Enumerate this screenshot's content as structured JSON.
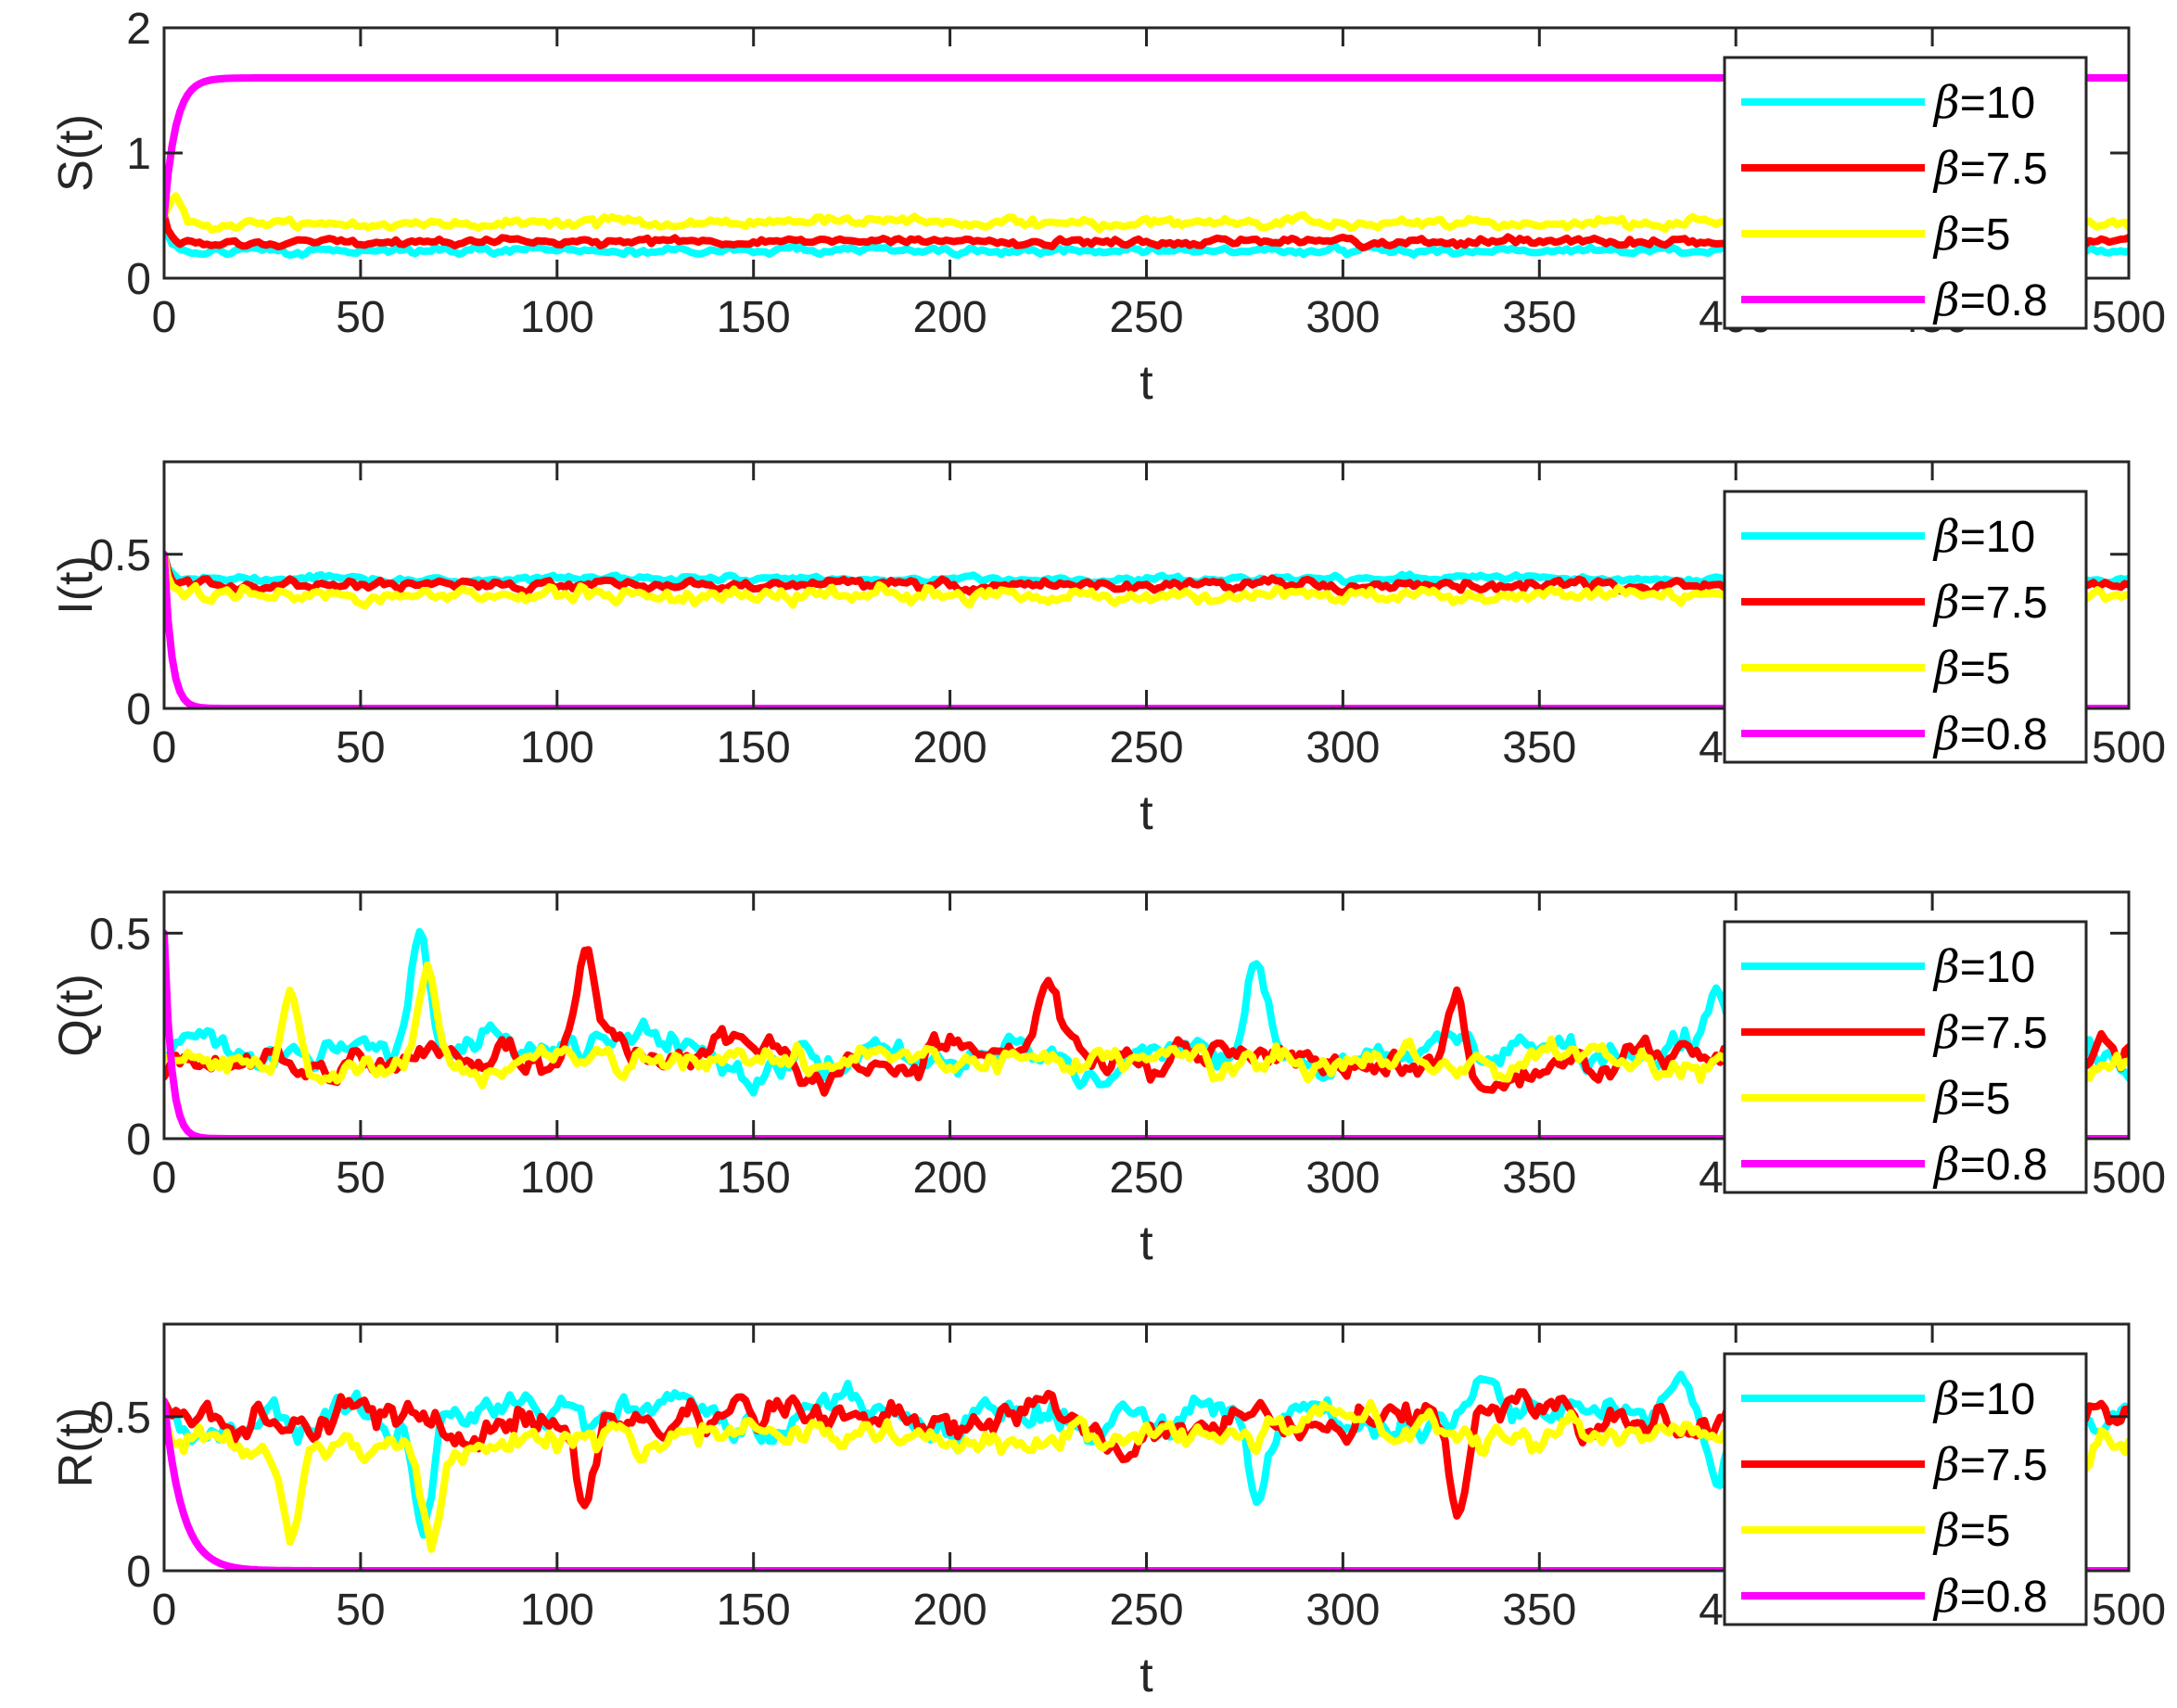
{
  "chart_data": [
    {
      "type": "line",
      "ylabel": "S(t)",
      "xlabel": "t",
      "xlim": [
        0,
        500
      ],
      "ylim": [
        0,
        2
      ],
      "xticks": [
        "0",
        "50",
        "100",
        "150",
        "200",
        "250",
        "300",
        "350",
        "400",
        "450",
        "500"
      ],
      "yticks": [
        "0",
        "1",
        "2"
      ],
      "legend": {
        "position": "top-right"
      },
      "series": [
        {
          "name": "β=10",
          "color": "#00ffff",
          "initial": 0.5,
          "steady": 0.22,
          "noise": 0.015,
          "rate": 0.8,
          "fluctuation": "small",
          "seed": 11
        },
        {
          "name": "β=7.5",
          "color": "#ff0000",
          "initial": 0.5,
          "steady": 0.29,
          "noise": 0.015,
          "rate": 0.8,
          "fluctuation": "small",
          "seed": 12
        },
        {
          "name": "β=5",
          "color": "#ffff00",
          "initial": 0.5,
          "steady": 0.44,
          "noise": 0.02,
          "rate": 0.8,
          "fluctuation": "small",
          "seed": 13,
          "overshoot": 0.75
        },
        {
          "name": "β=0.8",
          "color": "#ff00ff",
          "initial": 0.5,
          "steady": 1.6,
          "noise": 0.0,
          "rate": 0.35,
          "fluctuation": "none",
          "seed": 14
        }
      ]
    },
    {
      "type": "line",
      "ylabel": "I(t)",
      "xlabel": "t",
      "xlim": [
        0,
        500
      ],
      "ylim": [
        0,
        0.8
      ],
      "xticks": [
        "0",
        "50",
        "100",
        "150",
        "200",
        "250",
        "300",
        "350",
        "400",
        "450",
        "500"
      ],
      "yticks": [
        "0",
        "0.5"
      ],
      "legend": {
        "position": "top-right"
      },
      "series": [
        {
          "name": "β=10",
          "color": "#00ffff",
          "initial": 0.5,
          "steady": 0.42,
          "noise": 0.005,
          "rate": 0.8,
          "fluctuation": "small",
          "seed": 21
        },
        {
          "name": "β=7.5",
          "color": "#ff0000",
          "initial": 0.5,
          "steady": 0.4,
          "noise": 0.008,
          "rate": 0.8,
          "fluctuation": "small",
          "seed": 22
        },
        {
          "name": "β=5",
          "color": "#ffff00",
          "initial": 0.5,
          "steady": 0.37,
          "noise": 0.012,
          "rate": 0.8,
          "fluctuation": "small",
          "seed": 23
        },
        {
          "name": "β=0.8",
          "color": "#ff00ff",
          "initial": 0.5,
          "steady": 0.0,
          "noise": 0.0,
          "rate": 0.55,
          "fluctuation": "none",
          "seed": 24
        }
      ]
    },
    {
      "type": "line",
      "ylabel": "Q(t)",
      "xlabel": "t",
      "xlim": [
        0,
        500
      ],
      "ylim": [
        0,
        0.6
      ],
      "xticks": [
        "0",
        "50",
        "100",
        "150",
        "200",
        "250",
        "300",
        "350",
        "400",
        "450",
        "500"
      ],
      "yticks": [
        "0",
        "0.5"
      ],
      "legend": {
        "position": "top-right"
      },
      "series": [
        {
          "name": "β=10",
          "color": "#00ffff",
          "initial": 0.2,
          "steady": 0.21,
          "noise": 0.04,
          "rate": 0.8,
          "fluctuation": "large",
          "seed": 31,
          "spikes": [
            [
              65,
              0.49
            ],
            [
              278,
              0.39
            ],
            [
              395,
              0.37
            ]
          ]
        },
        {
          "name": "β=7.5",
          "color": "#ff0000",
          "initial": 0.15,
          "steady": 0.2,
          "noise": 0.04,
          "rate": 0.8,
          "fluctuation": "large",
          "seed": 32,
          "spikes": [
            [
              107,
              0.42
            ],
            [
              329,
              0.41
            ],
            [
              225,
              0.34
            ]
          ]
        },
        {
          "name": "β=5",
          "color": "#ffff00",
          "initial": 0.2,
          "steady": 0.18,
          "noise": 0.035,
          "rate": 0.8,
          "fluctuation": "large",
          "seed": 33,
          "spikes": [
            [
              32,
              0.38
            ],
            [
              67,
              0.4
            ]
          ]
        },
        {
          "name": "β=0.8",
          "color": "#ff00ff",
          "initial": 0.5,
          "steady": 0.0,
          "noise": 0.0,
          "rate": 0.55,
          "fluctuation": "none",
          "seed": 34
        }
      ]
    },
    {
      "type": "line",
      "ylabel": "R(t)",
      "xlabel": "t",
      "xlim": [
        0,
        500
      ],
      "ylim": [
        0,
        0.8
      ],
      "xticks": [
        "0",
        "50",
        "100",
        "150",
        "200",
        "250",
        "300",
        "350",
        "400",
        "450",
        "500"
      ],
      "yticks": [
        "0",
        "0.5"
      ],
      "legend": {
        "position": "top-right"
      },
      "series": [
        {
          "name": "β=10",
          "color": "#00ffff",
          "initial": 0.52,
          "steady": 0.5,
          "noise": 0.06,
          "rate": 0.8,
          "fluctuation": "large",
          "seed": 41,
          "dips": [
            [
              66,
              0.13
            ],
            [
              278,
              0.27
            ],
            [
              395,
              0.31
            ]
          ]
        },
        {
          "name": "β=7.5",
          "color": "#ff0000",
          "initial": 0.55,
          "steady": 0.49,
          "noise": 0.06,
          "rate": 0.8,
          "fluctuation": "large",
          "seed": 42,
          "dips": [
            [
              107,
              0.2
            ],
            [
              329,
              0.2
            ]
          ]
        },
        {
          "name": "β=5",
          "color": "#ffff00",
          "initial": 0.5,
          "steady": 0.44,
          "noise": 0.05,
          "rate": 0.8,
          "fluctuation": "large",
          "seed": 43,
          "dips": [
            [
              32,
              0.14
            ],
            [
              68,
              0.11
            ]
          ]
        },
        {
          "name": "β=0.8",
          "color": "#ff00ff",
          "initial": 0.55,
          "steady": 0.0,
          "noise": 0.0,
          "rate": 0.22,
          "fluctuation": "none",
          "seed": 44
        }
      ]
    }
  ]
}
